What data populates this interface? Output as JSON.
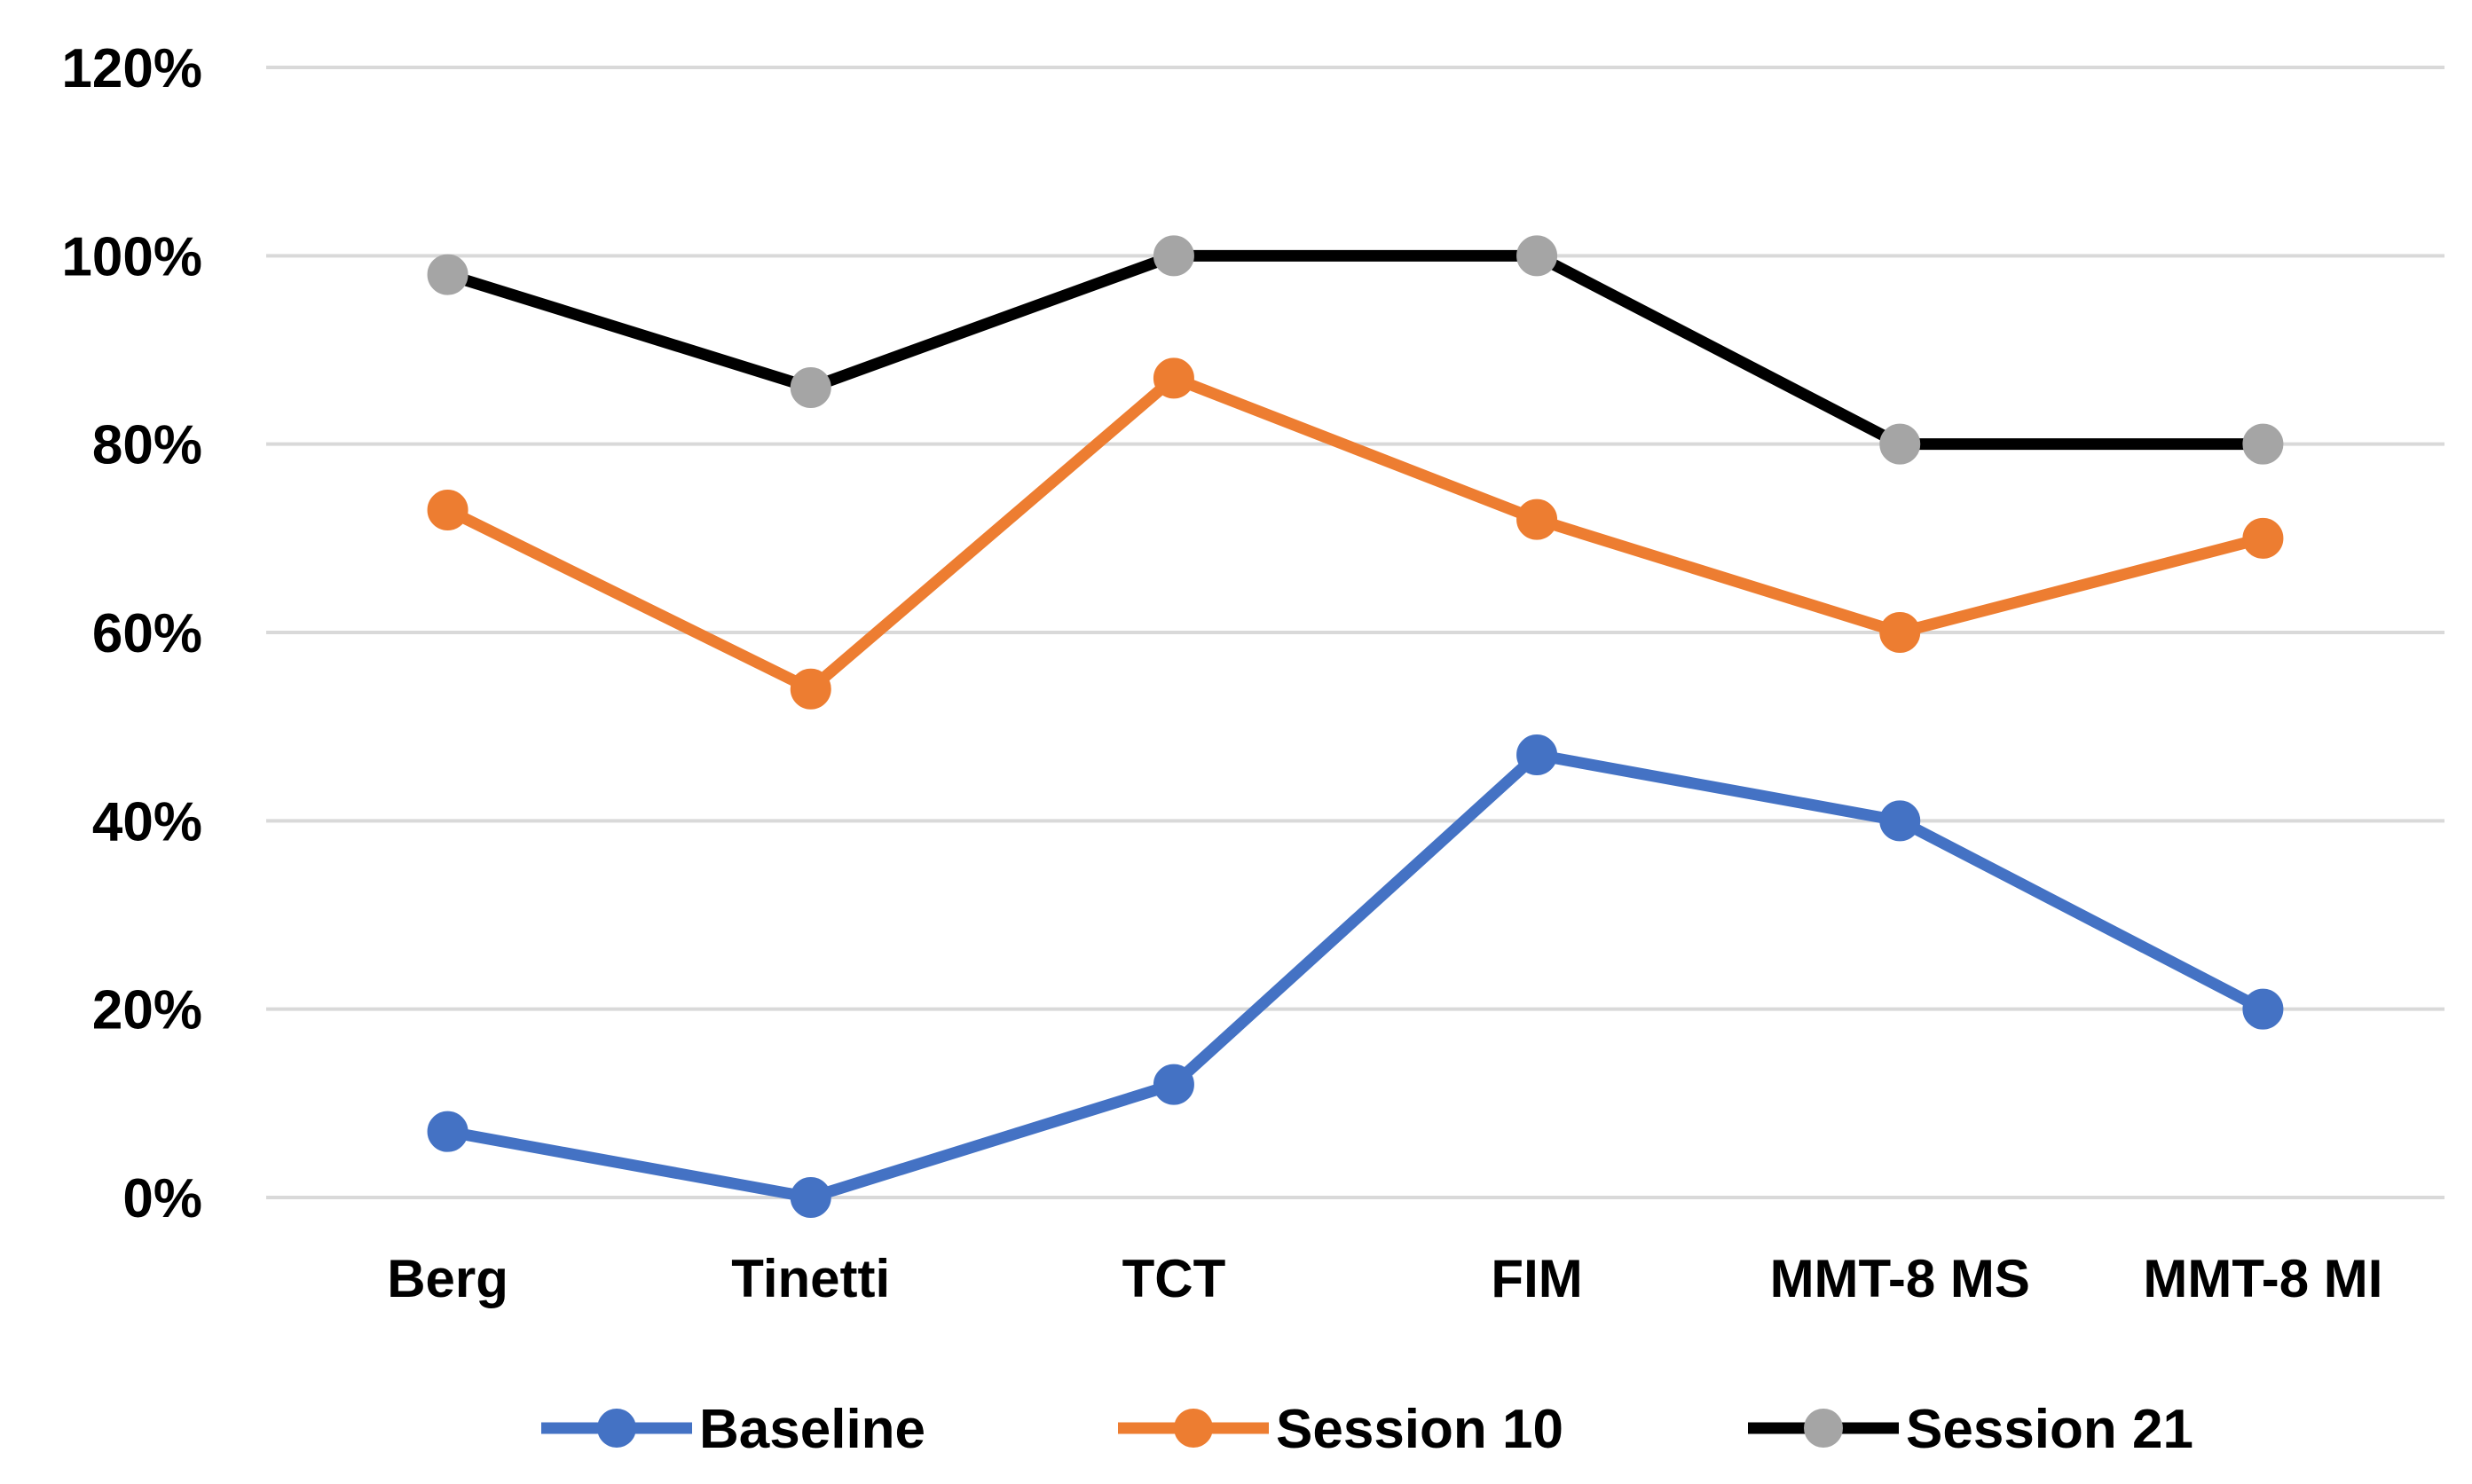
{
  "chart_data": {
    "type": "line",
    "title": "",
    "xlabel": "",
    "ylabel": "",
    "categories": [
      "Berg",
      "Tinetti",
      "TCT",
      "FIM",
      "MMT-8 MS",
      "MMT-8 MI"
    ],
    "ylim": [
      0,
      120
    ],
    "yticks": [
      0,
      20,
      40,
      60,
      80,
      100,
      120
    ],
    "ytick_labels": [
      "0%",
      "20%",
      "40%",
      "60%",
      "80%",
      "100%",
      "120%"
    ],
    "grid": true,
    "legend_position": "bottom",
    "series": [
      {
        "name": "Baseline",
        "line_color": "#4472C4",
        "marker_color": "#4472C4",
        "values": [
          7,
          0,
          12,
          47,
          40,
          20
        ]
      },
      {
        "name": "Session 10",
        "line_color": "#ED7D31",
        "marker_color": "#ED7D31",
        "values": [
          73,
          54,
          87,
          72,
          60,
          70
        ]
      },
      {
        "name": "Session 21",
        "line_color": "#000000",
        "marker_color": "#A5A5A5",
        "values": [
          98,
          86,
          100,
          100,
          80,
          80
        ]
      }
    ]
  }
}
